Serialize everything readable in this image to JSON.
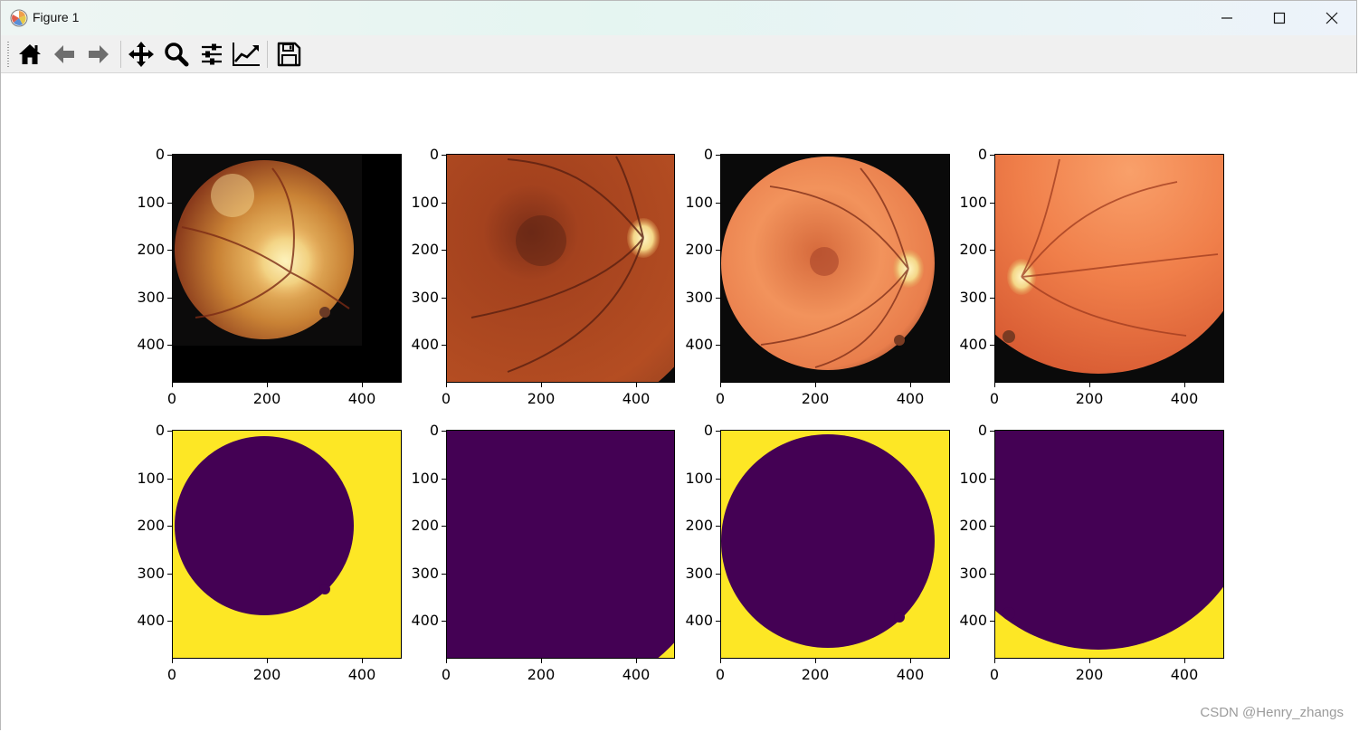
{
  "window": {
    "title": "Figure 1",
    "controls": [
      "minimize",
      "maximize",
      "close"
    ]
  },
  "toolbar": {
    "items": [
      {
        "name": "home-icon"
      },
      {
        "name": "back-arrow-icon"
      },
      {
        "name": "forward-arrow-icon"
      },
      {
        "name": "pan-icon"
      },
      {
        "name": "zoom-icon"
      },
      {
        "name": "configure-subplots-icon"
      },
      {
        "name": "edit-axes-icon"
      },
      {
        "name": "save-icon"
      }
    ]
  },
  "figure": {
    "rows": 2,
    "cols": 4,
    "xticks": [
      "0",
      "200",
      "400"
    ],
    "yticks": [
      "0",
      "100",
      "200",
      "300",
      "400"
    ],
    "image_extent": [
      0,
      480
    ],
    "top_row": "fundus color images",
    "bottom_row": "binary masks",
    "mask_colors": {
      "background": "#fde725",
      "foreground": "#440154"
    }
  },
  "watermark": "CSDN @Henry_zhangs"
}
